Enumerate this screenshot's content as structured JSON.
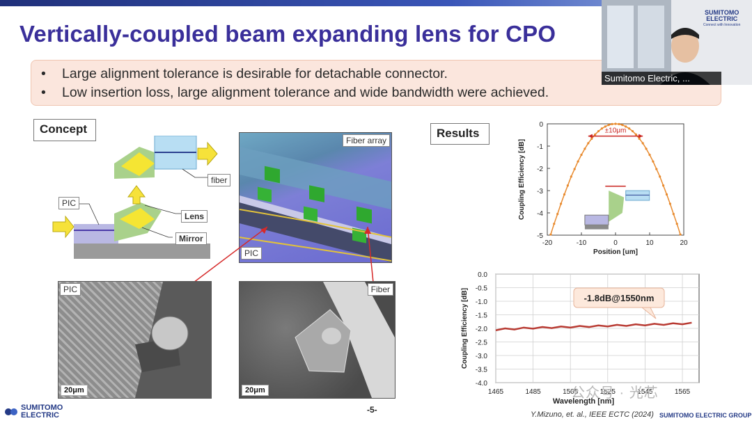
{
  "slide": {
    "title": "Vertically-coupled beam expanding lens for CPO",
    "bullets": [
      "Large alignment tolerance is desirable for detachable connector.",
      "Low insertion loss, large alignment tolerance and wide bandwidth were achieved."
    ],
    "bullet_marker": "•",
    "concept_label": "Concept",
    "results_label": "Results",
    "diagram": {
      "pic_label": "PIC",
      "fiber_label": "fiber",
      "lens_label": "Lens",
      "mirror_label": "Mirror"
    },
    "photos": {
      "render_fiber_array": "Fiber array",
      "render_pic": "PIC",
      "sem_pic": "PIC",
      "sem_fiber": "Fiber",
      "scale_1": "20μm",
      "scale_2": "20μm"
    },
    "page_number": "-5-",
    "citation": "Y.Mizuno, et. al., IEEE ECTC (2024)",
    "group_text": "SUMITOMO ELECTRIC GROUP",
    "logo_line1": "SUMITOMO",
    "logo_line2": "ELECTRIC",
    "video_logo_line1": "SUMITOMO",
    "video_logo_line2": "ELECTRIC",
    "video_logo_tagline": "Connect with Innovation",
    "video_name": "Sumitomo Electric, ...",
    "watermark": "公众号 · 光芯"
  },
  "chart_data": [
    {
      "type": "line",
      "xlabel": "Position [um]",
      "ylabel": "Coupling Efficiency [dB]",
      "xlim": [
        -20,
        20
      ],
      "ylim": [
        -5,
        0
      ],
      "x_ticks": [
        -20,
        -10,
        0,
        10,
        20
      ],
      "y_ticks": [
        0,
        -1,
        -2,
        -3,
        -4,
        -5
      ],
      "annotation": "±10μm",
      "color": "#e88a2e",
      "series": [
        {
          "x": [
            -19,
            -18,
            -17,
            -16,
            -15,
            -14,
            -13,
            -12,
            -11,
            -10,
            -9,
            -8,
            -7,
            -6,
            -5,
            -4,
            -3,
            -2,
            -1,
            0,
            1,
            2,
            3,
            4,
            5,
            6,
            7,
            8,
            9,
            10,
            11,
            12,
            13,
            14,
            15,
            16,
            17,
            18,
            19
          ],
          "values": [
            -4.97,
            -4.49,
            -4.05,
            -3.59,
            -3.17,
            -2.77,
            -2.37,
            -2.03,
            -1.69,
            -1.39,
            -1.12,
            -0.87,
            -0.67,
            -0.48,
            -0.33,
            -0.21,
            -0.12,
            -0.05,
            -0.01,
            0.0,
            -0.01,
            -0.05,
            -0.12,
            -0.21,
            -0.33,
            -0.48,
            -0.67,
            -0.87,
            -1.12,
            -1.39,
            -1.69,
            -2.03,
            -2.37,
            -2.77,
            -3.17,
            -3.59,
            -4.05,
            -4.49,
            -4.97
          ]
        }
      ]
    },
    {
      "type": "line",
      "xlabel": "Wavelength [nm]",
      "ylabel": "Coupling Efficiency [dB]",
      "xlim": [
        1465,
        1565
      ],
      "ylim": [
        -4.0,
        0.0
      ],
      "x_ticks": [
        1465,
        1485,
        1505,
        1525,
        1545,
        1565
      ],
      "y_ticks": [
        "0.0",
        "-0.5",
        "-1.0",
        "-1.5",
        "-2.0",
        "-2.5",
        "-3.0",
        "-3.5",
        "-4.0"
      ],
      "annotation": "-1.8dB@1550nm",
      "grid": true,
      "color": "#b83a32",
      "series": [
        {
          "x": [
            1465,
            1470,
            1475,
            1480,
            1485,
            1490,
            1495,
            1500,
            1505,
            1510,
            1515,
            1520,
            1525,
            1530,
            1535,
            1540,
            1545,
            1550,
            1555,
            1560,
            1565,
            1570
          ],
          "values": [
            -2.05,
            -2.03,
            -2.02,
            -2.0,
            -1.99,
            -1.98,
            -1.97,
            -1.96,
            -1.95,
            -1.94,
            -1.93,
            -1.92,
            -1.91,
            -1.9,
            -1.89,
            -1.88,
            -1.87,
            -1.86,
            -1.85,
            -1.84,
            -1.83,
            -1.82
          ]
        }
      ]
    }
  ]
}
